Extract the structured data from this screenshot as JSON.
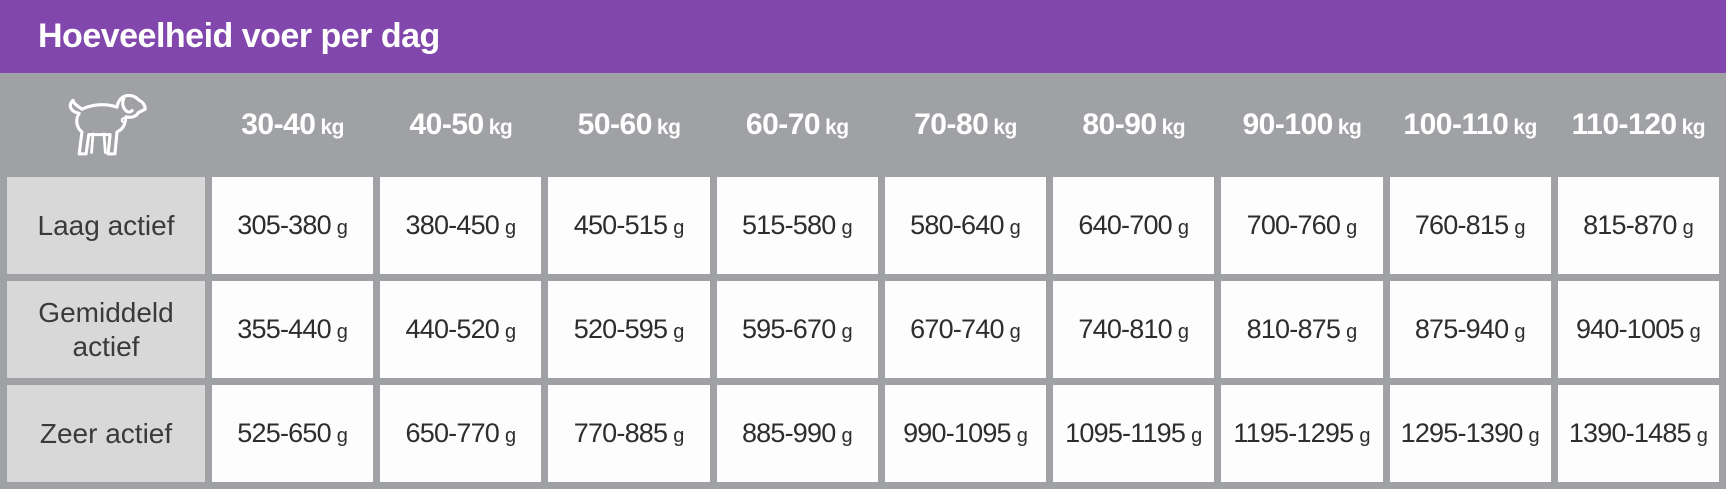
{
  "title": "Hoeveelheid voer per dag",
  "colors": {
    "title_bar_purple": "#8147ad",
    "header_band_gray": "#9fa1a4",
    "row_label_gray": "#d8d8d9",
    "cell_white": "#fdfdfe",
    "title_text": "#ffffff",
    "cell_text": "#2d2d30"
  },
  "icons": {
    "header_corner": "dog-icon"
  },
  "table": {
    "weight_unit": "kg",
    "gram_unit": "g",
    "weight_columns": [
      "30-40",
      "40-50",
      "50-60",
      "60-70",
      "70-80",
      "80-90",
      "90-100",
      "100-110",
      "110-120"
    ],
    "rows": [
      {
        "label": "Laag actief",
        "values": [
          "305-380",
          "380-450",
          "450-515",
          "515-580",
          "580-640",
          "640-700",
          "700-760",
          "760-815",
          "815-870"
        ]
      },
      {
        "label": "Gemiddeld actief",
        "values": [
          "355-440",
          "440-520",
          "520-595",
          "595-670",
          "670-740",
          "740-810",
          "810-875",
          "875-940",
          "940-1005"
        ]
      },
      {
        "label": "Zeer actief",
        "values": [
          "525-650",
          "650-770",
          "770-885",
          "885-990",
          "990-1095",
          "1095-1195",
          "1195-1295",
          "1295-1390",
          "1390-1485"
        ]
      }
    ]
  },
  "chart_data": {
    "type": "table",
    "title": "Hoeveelheid voer per dag",
    "column_unit": "kg",
    "value_unit": "g",
    "columns": [
      "30-40 kg",
      "40-50 kg",
      "50-60 kg",
      "60-70 kg",
      "70-80 kg",
      "80-90 kg",
      "90-100 kg",
      "100-110 kg",
      "110-120 kg"
    ],
    "row_labels": [
      "Laag actief",
      "Gemiddeld actief",
      "Zeer actief"
    ],
    "values": [
      [
        "305-380 g",
        "380-450 g",
        "450-515 g",
        "515-580 g",
        "580-640 g",
        "640-700 g",
        "700-760 g",
        "760-815 g",
        "815-870 g"
      ],
      [
        "355-440 g",
        "440-520 g",
        "520-595 g",
        "595-670 g",
        "670-740 g",
        "740-810 g",
        "810-875 g",
        "875-940 g",
        "940-1005 g"
      ],
      [
        "525-650 g",
        "650-770 g",
        "770-885 g",
        "885-990 g",
        "990-1095 g",
        "1095-1195 g",
        "1195-1295 g",
        "1295-1390 g",
        "1390-1485 g"
      ]
    ]
  }
}
